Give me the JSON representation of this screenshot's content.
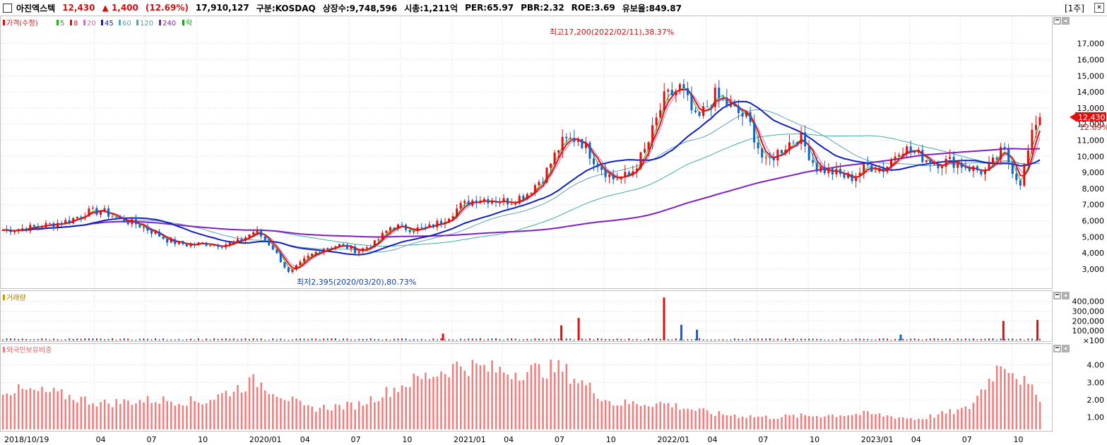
{
  "header": {
    "stock_name": "아진엑스텍",
    "price": "12,430",
    "change": "▲ 1,400",
    "change_pct": "(12.69%)",
    "volume": "17,910,127",
    "market": "구분:KOSDAQ",
    "shares": "상장수:9,748,596",
    "market_cap": "시총:1,211억",
    "per": "PER:65.97",
    "pbr": "PBR:2.32",
    "roe": "ROE:3.69",
    "float_ratio": "유보율:849.87",
    "period": "[1주]",
    "close_label": "✕"
  },
  "colors": {
    "up": "#e01010",
    "down": "#1060d0",
    "ma5": "#20b020",
    "ma8": "#e01010",
    "ma20": "#d070d0",
    "ma45": "#1020c0",
    "ma60": "#60a0c0",
    "ma120": "#40b0a0",
    "ma240": "#8020c0",
    "foreign": "#f08080",
    "grid": "#dcdcdc"
  },
  "chart_data": [
    {
      "type": "candlestick",
      "title": "가격(수정)",
      "legend": [
        "가격(수정)",
        "5",
        "8",
        "20",
        "45",
        "60",
        "120",
        "240",
        "락"
      ],
      "yticks": [
        3000,
        4000,
        5000,
        6000,
        7000,
        8000,
        9000,
        10000,
        11000,
        12000,
        13000,
        14000,
        15000,
        16000,
        17000
      ],
      "ytick_labels": [
        "3,000",
        "4,000",
        "5,000",
        "6,000",
        "7,000",
        "8,000",
        "9,000",
        "10,000",
        "11,000",
        "12,000",
        "13,000",
        "14,000",
        "15,000",
        "16,000",
        "17,000"
      ],
      "ylim": [
        1900,
        18300
      ],
      "last_price": 12430,
      "last_price_label": "12,430",
      "last_pct_label": "12.69%",
      "high_annotation": "최고17,200(2022/02/11),38.37%",
      "low_annotation": "최저2,395(2020/03/20),80.73%",
      "series_close": [
        {
          "date": "2018-10",
          "close": 5400
        },
        {
          "date": "2018-12",
          "close": 5600
        },
        {
          "date": "2019-02",
          "close": 6000
        },
        {
          "date": "2019-03",
          "close": 6500
        },
        {
          "date": "2019-04",
          "close": 6600
        },
        {
          "date": "2019-05",
          "close": 6100
        },
        {
          "date": "2019-06",
          "close": 5800
        },
        {
          "date": "2019-07",
          "close": 5300
        },
        {
          "date": "2019-08",
          "close": 4700
        },
        {
          "date": "2019-09",
          "close": 4500
        },
        {
          "date": "2019-10",
          "close": 4600
        },
        {
          "date": "2019-11",
          "close": 4500
        },
        {
          "date": "2019-12",
          "close": 4700
        },
        {
          "date": "2020-01",
          "close": 5400
        },
        {
          "date": "2020-02",
          "close": 4300
        },
        {
          "date": "2020-03",
          "close": 2700
        },
        {
          "date": "2020-04",
          "close": 3700
        },
        {
          "date": "2020-05",
          "close": 4300
        },
        {
          "date": "2020-06",
          "close": 4500
        },
        {
          "date": "2020-07",
          "close": 4100
        },
        {
          "date": "2020-08",
          "close": 4600
        },
        {
          "date": "2020-09",
          "close": 5700
        },
        {
          "date": "2020-10",
          "close": 5500
        },
        {
          "date": "2020-11",
          "close": 5500
        },
        {
          "date": "2020-12",
          "close": 6000
        },
        {
          "date": "2021-01",
          "close": 6900
        },
        {
          "date": "2021-02",
          "close": 7400
        },
        {
          "date": "2021-03",
          "close": 7300
        },
        {
          "date": "2021-04",
          "close": 7200
        },
        {
          "date": "2021-05",
          "close": 7700
        },
        {
          "date": "2021-06",
          "close": 8800
        },
        {
          "date": "2021-07",
          "close": 10800
        },
        {
          "date": "2021-08",
          "close": 11200
        },
        {
          "date": "2021-09",
          "close": 9700
        },
        {
          "date": "2021-10",
          "close": 8600
        },
        {
          "date": "2021-11",
          "close": 8800
        },
        {
          "date": "2021-12",
          "close": 10500
        },
        {
          "date": "2022-01",
          "close": 13500
        },
        {
          "date": "2022-02",
          "close": 14300
        },
        {
          "date": "2022-03",
          "close": 12100
        },
        {
          "date": "2022-04",
          "close": 13800
        },
        {
          "date": "2022-05",
          "close": 13000
        },
        {
          "date": "2022-06",
          "close": 12300
        },
        {
          "date": "2022-07",
          "close": 9500
        },
        {
          "date": "2022-08",
          "close": 10500
        },
        {
          "date": "2022-09",
          "close": 11300
        },
        {
          "date": "2022-10",
          "close": 9300
        },
        {
          "date": "2022-11",
          "close": 9000
        },
        {
          "date": "2022-12",
          "close": 8600
        },
        {
          "date": "2023-01",
          "close": 9400
        },
        {
          "date": "2023-02",
          "close": 9200
        },
        {
          "date": "2023-03",
          "close": 10600
        },
        {
          "date": "2023-04",
          "close": 10100
        },
        {
          "date": "2023-05",
          "close": 9600
        },
        {
          "date": "2023-06",
          "close": 9700
        },
        {
          "date": "2023-07",
          "close": 9300
        },
        {
          "date": "2023-08",
          "close": 9000
        },
        {
          "date": "2023-09",
          "close": 10400
        },
        {
          "date": "2023-10",
          "close": 8300
        },
        {
          "date": "2023-11",
          "close": 12430
        }
      ]
    },
    {
      "type": "bar",
      "title": "거래량",
      "yticks": [
        100,
        100000,
        200000,
        300000,
        400000
      ],
      "ytick_labels": [
        "×100",
        "100,000",
        "200,000",
        "300,000",
        "400,000"
      ],
      "ylim": [
        0,
        470000
      ],
      "spikes": [
        {
          "date": "2020-12",
          "value": 70000,
          "dir": "up"
        },
        {
          "date": "2021-07",
          "value": 155000,
          "dir": "up"
        },
        {
          "date": "2021-08",
          "value": 230000,
          "dir": "up"
        },
        {
          "date": "2022-01",
          "value": 440000,
          "dir": "up"
        },
        {
          "date": "2022-02",
          "value": 160000,
          "dir": "down"
        },
        {
          "date": "2022-03",
          "value": 110000,
          "dir": "down"
        },
        {
          "date": "2023-03",
          "value": 60000,
          "dir": "down"
        },
        {
          "date": "2023-09",
          "value": 200000,
          "dir": "up"
        },
        {
          "date": "2023-11",
          "value": 210000,
          "dir": "up"
        }
      ]
    },
    {
      "type": "bar",
      "title": "외국인보유비중",
      "yticks": [
        1,
        2,
        3,
        4
      ],
      "ytick_labels": [
        "1.00",
        "2.00",
        "3.00",
        "4.00"
      ],
      "ylim": [
        0.3,
        5.0
      ],
      "series": [
        {
          "date": "2018-10",
          "value": 2.6
        },
        {
          "date": "2019-01",
          "value": 2.4
        },
        {
          "date": "2019-04",
          "value": 1.8
        },
        {
          "date": "2019-07",
          "value": 2.0
        },
        {
          "date": "2019-10",
          "value": 1.9
        },
        {
          "date": "2020-01",
          "value": 3.1
        },
        {
          "date": "2020-04",
          "value": 1.5
        },
        {
          "date": "2020-07",
          "value": 1.7
        },
        {
          "date": "2020-10",
          "value": 3.0
        },
        {
          "date": "2021-01",
          "value": 4.0
        },
        {
          "date": "2021-04",
          "value": 3.6
        },
        {
          "date": "2021-07",
          "value": 3.8
        },
        {
          "date": "2021-10",
          "value": 1.8
        },
        {
          "date": "2022-01",
          "value": 1.8
        },
        {
          "date": "2022-04",
          "value": 1.2
        },
        {
          "date": "2022-07",
          "value": 1.0
        },
        {
          "date": "2022-10",
          "value": 1.1
        },
        {
          "date": "2023-01",
          "value": 1.2
        },
        {
          "date": "2023-04",
          "value": 0.9
        },
        {
          "date": "2023-07",
          "value": 1.5
        },
        {
          "date": "2023-09",
          "value": 4.3
        },
        {
          "date": "2023-11",
          "value": 2.2
        }
      ]
    }
  ],
  "xaxis": {
    "labels": [
      "2018/10/19",
      "04",
      "07",
      "10",
      "2020/01",
      "04",
      "07",
      "10",
      "2021/01",
      "04",
      "07",
      "10",
      "2022/01",
      "04",
      "07",
      "10",
      "2023/01",
      "04",
      "07",
      "10"
    ]
  },
  "icons": [
    "panel-restore-icon",
    "panel-maximize-icon"
  ]
}
